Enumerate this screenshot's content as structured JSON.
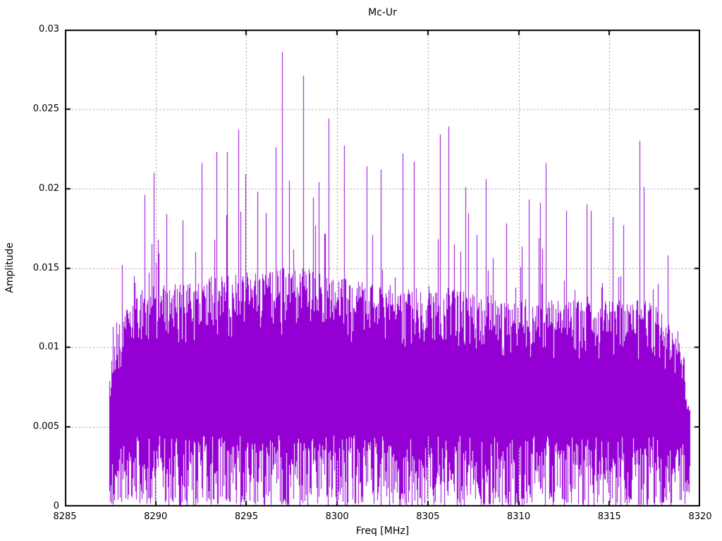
{
  "chart_data": {
    "type": "line",
    "style": "dense-impulse-spectrum",
    "title": "Mc-Ur",
    "xlabel": "Freq [MHz]",
    "ylabel": "Amplitude",
    "xlim": [
      8285,
      8320
    ],
    "ylim": [
      0,
      0.03
    ],
    "xticks": [
      8285,
      8290,
      8295,
      8300,
      8305,
      8310,
      8315,
      8320
    ],
    "yticks": [
      0,
      0.005,
      0.01,
      0.015,
      0.02,
      0.025,
      0.03
    ],
    "ytick_labels": [
      "0",
      "0.005",
      "0.01",
      "0.015",
      "0.02",
      "0.025",
      "0.03"
    ],
    "grid": true,
    "legend": "none",
    "line_color": "#9400d3",
    "grid_color": "#979797",
    "axis_color": "#000000",
    "background_color": "#ffffff",
    "data_range": [
      8287.45,
      8319.4
    ],
    "noise_band": {
      "dense_low": 0.004,
      "dense_high": 0.013,
      "median": 0.0075,
      "floor": 0.0
    },
    "noise_seed": 1234567,
    "envelope": [
      {
        "f": 8287.45,
        "lo": 0.0025,
        "hi": 0.0085,
        "spike": 0.0115
      },
      {
        "f": 8288.0,
        "lo": 0.004,
        "hi": 0.012,
        "spike": 0.0155
      },
      {
        "f": 8289.0,
        "lo": 0.0045,
        "hi": 0.0135,
        "spike": 0.0165
      },
      {
        "f": 8290.0,
        "lo": 0.0045,
        "hi": 0.014,
        "spike": 0.02
      },
      {
        "f": 8291.0,
        "lo": 0.0045,
        "hi": 0.014,
        "spike": 0.0185
      },
      {
        "f": 8292.0,
        "lo": 0.0045,
        "hi": 0.0142,
        "spike": 0.02
      },
      {
        "f": 8293.0,
        "lo": 0.0045,
        "hi": 0.0145,
        "spike": 0.0215
      },
      {
        "f": 8294.0,
        "lo": 0.0045,
        "hi": 0.0145,
        "spike": 0.022
      },
      {
        "f": 8295.0,
        "lo": 0.0045,
        "hi": 0.0148,
        "spike": 0.0225
      },
      {
        "f": 8296.0,
        "lo": 0.0045,
        "hi": 0.0148,
        "spike": 0.0215
      },
      {
        "f": 8297.0,
        "lo": 0.0045,
        "hi": 0.015,
        "spike": 0.024
      },
      {
        "f": 8298.0,
        "lo": 0.0045,
        "hi": 0.015,
        "spike": 0.0235
      },
      {
        "f": 8299.0,
        "lo": 0.0045,
        "hi": 0.0148,
        "spike": 0.0215
      },
      {
        "f": 8300.0,
        "lo": 0.0045,
        "hi": 0.0145,
        "spike": 0.0225
      },
      {
        "f": 8301.0,
        "lo": 0.0045,
        "hi": 0.0142,
        "spike": 0.0215
      },
      {
        "f": 8302.0,
        "lo": 0.0045,
        "hi": 0.014,
        "spike": 0.021
      },
      {
        "f": 8303.0,
        "lo": 0.0045,
        "hi": 0.014,
        "spike": 0.021
      },
      {
        "f": 8304.0,
        "lo": 0.0045,
        "hi": 0.014,
        "spike": 0.0212
      },
      {
        "f": 8305.0,
        "lo": 0.0045,
        "hi": 0.014,
        "spike": 0.0215
      },
      {
        "f": 8306.0,
        "lo": 0.0045,
        "hi": 0.014,
        "spike": 0.022
      },
      {
        "f": 8307.0,
        "lo": 0.0045,
        "hi": 0.0135,
        "spike": 0.02
      },
      {
        "f": 8308.0,
        "lo": 0.0045,
        "hi": 0.0135,
        "spike": 0.0195
      },
      {
        "f": 8309.0,
        "lo": 0.0045,
        "hi": 0.013,
        "spike": 0.018
      },
      {
        "f": 8310.0,
        "lo": 0.0045,
        "hi": 0.013,
        "spike": 0.0185
      },
      {
        "f": 8311.0,
        "lo": 0.0045,
        "hi": 0.0132,
        "spike": 0.0195
      },
      {
        "f": 8312.0,
        "lo": 0.0045,
        "hi": 0.013,
        "spike": 0.0185
      },
      {
        "f": 8313.0,
        "lo": 0.0045,
        "hi": 0.013,
        "spike": 0.018
      },
      {
        "f": 8314.0,
        "lo": 0.0045,
        "hi": 0.0132,
        "spike": 0.018
      },
      {
        "f": 8315.0,
        "lo": 0.0045,
        "hi": 0.013,
        "spike": 0.0185
      },
      {
        "f": 8316.0,
        "lo": 0.0045,
        "hi": 0.013,
        "spike": 0.0178
      },
      {
        "f": 8317.0,
        "lo": 0.0045,
        "hi": 0.013,
        "spike": 0.0185
      },
      {
        "f": 8318.0,
        "lo": 0.0045,
        "hi": 0.0122,
        "spike": 0.016
      },
      {
        "f": 8319.0,
        "lo": 0.004,
        "hi": 0.01,
        "spike": 0.0128
      },
      {
        "f": 8319.4,
        "lo": 0.003,
        "hi": 0.0075,
        "spike": 0.009
      }
    ],
    "peaks": [
      [
        8287.65,
        0.0113
      ],
      [
        8288.15,
        0.0152
      ],
      [
        8288.8,
        0.0145
      ],
      [
        8289.39,
        0.0196
      ],
      [
        8289.89,
        0.021
      ],
      [
        8290.6,
        0.0184
      ],
      [
        8291.5,
        0.018
      ],
      [
        8292.54,
        0.0216
      ],
      [
        8293.35,
        0.0223
      ],
      [
        8293.93,
        0.0223
      ],
      [
        8294.56,
        0.0237
      ],
      [
        8294.95,
        0.0209
      ],
      [
        8295.6,
        0.0198
      ],
      [
        8296.62,
        0.0226
      ],
      [
        8296.97,
        0.0286
      ],
      [
        8297.35,
        0.0205
      ],
      [
        8298.13,
        0.0271
      ],
      [
        8299.0,
        0.0204
      ],
      [
        8299.53,
        0.0244
      ],
      [
        8300.38,
        0.0227
      ],
      [
        8301.63,
        0.0214
      ],
      [
        8302.4,
        0.0212
      ],
      [
        8303.6,
        0.0222
      ],
      [
        8304.23,
        0.0217
      ],
      [
        8305.67,
        0.0234
      ],
      [
        8306.13,
        0.0239
      ],
      [
        8307.06,
        0.0201
      ],
      [
        8308.2,
        0.0206
      ],
      [
        8309.3,
        0.0178
      ],
      [
        8310.55,
        0.0193
      ],
      [
        8311.18,
        0.0191
      ],
      [
        8311.49,
        0.0216
      ],
      [
        8312.6,
        0.0186
      ],
      [
        8313.75,
        0.019
      ],
      [
        8313.98,
        0.0186
      ],
      [
        8315.2,
        0.0182
      ],
      [
        8315.77,
        0.0177
      ],
      [
        8316.66,
        0.023
      ],
      [
        8316.9,
        0.0201
      ],
      [
        8318.2,
        0.0158
      ]
    ]
  }
}
